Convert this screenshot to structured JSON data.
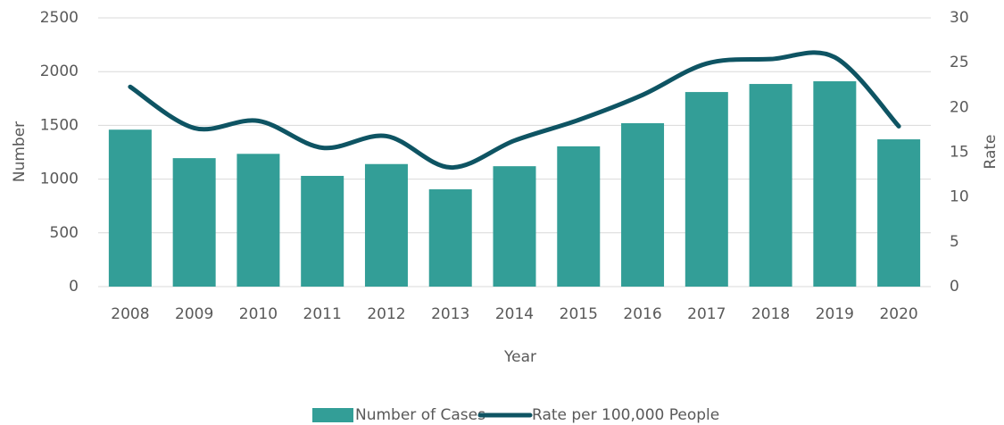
{
  "chart_data": {
    "type": "bar_line",
    "categories": [
      "2008",
      "2009",
      "2010",
      "2011",
      "2012",
      "2013",
      "2014",
      "2015",
      "2016",
      "2017",
      "2018",
      "2019",
      "2020"
    ],
    "series": [
      {
        "name": "Number of Cases",
        "type": "bar",
        "color": "#339e97",
        "values": [
          1460,
          1195,
          1235,
          1030,
          1140,
          905,
          1120,
          1305,
          1520,
          1810,
          1885,
          1910,
          1370
        ]
      },
      {
        "name": "Rate per 100,000 People",
        "type": "line",
        "axis": "y2",
        "color": "#0e5463",
        "values": [
          22.3,
          17.7,
          18.5,
          15.5,
          16.8,
          13.3,
          16.3,
          18.6,
          21.4,
          24.9,
          25.4,
          25.6,
          17.9
        ]
      }
    ],
    "ylabel": "Number",
    "y2label": "Rate",
    "xlabel": "Year",
    "ylim": [
      0,
      2500
    ],
    "yticks": [
      0,
      500,
      1000,
      1500,
      2000,
      2500
    ],
    "y2lim": [
      0,
      30
    ],
    "y2ticks": [
      0,
      5,
      10,
      15,
      20,
      25,
      30
    ],
    "grid": true,
    "legend": "bottom"
  }
}
